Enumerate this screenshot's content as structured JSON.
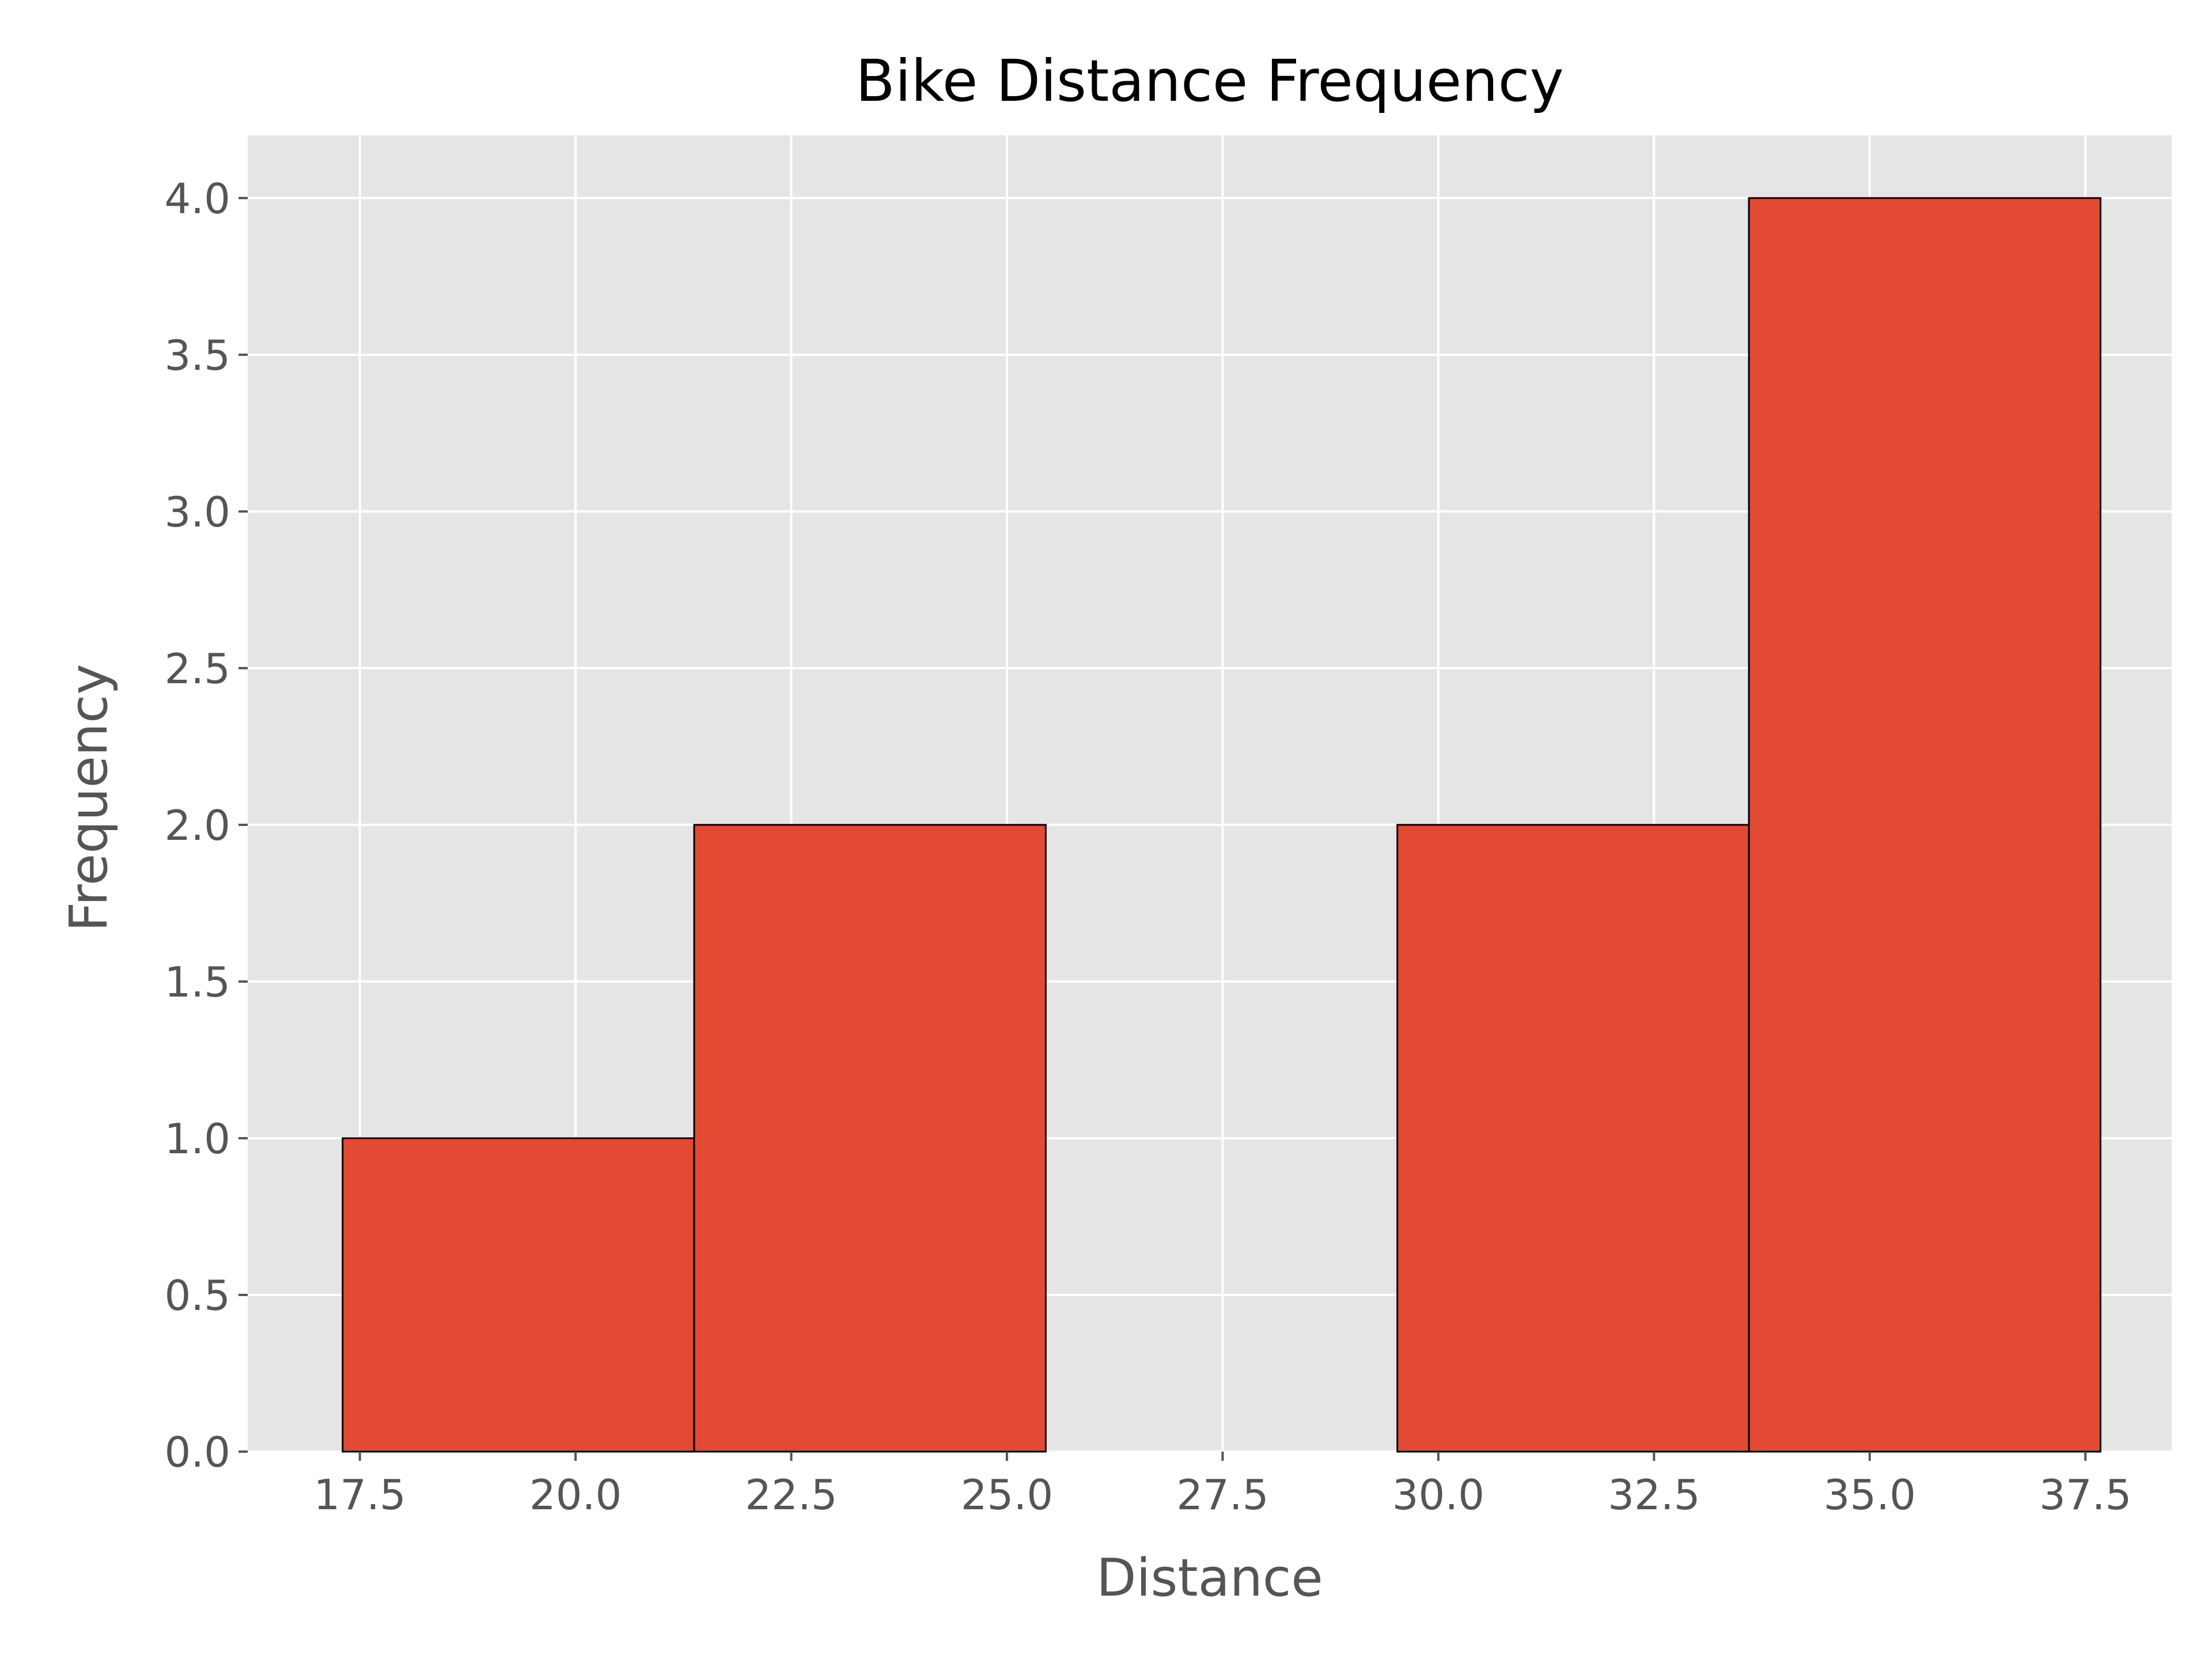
{
  "chart_data": {
    "type": "bar",
    "title": "Bike Distance Frequency",
    "xlabel": "Distance",
    "ylabel": "Frequency",
    "xlim": [
      16.2,
      38.5
    ],
    "ylim": [
      0,
      4.2
    ],
    "xticks": [
      "17.5",
      "20.0",
      "22.5",
      "25.0",
      "27.5",
      "30.0",
      "32.5",
      "35.0",
      "37.5"
    ],
    "yticks": [
      "0.0",
      "0.5",
      "1.0",
      "1.5",
      "2.0",
      "2.5",
      "3.0",
      "3.5",
      "4.0"
    ],
    "bins": [
      {
        "start": 17.3,
        "end": 21.375,
        "count": 1
      },
      {
        "start": 21.375,
        "end": 25.45,
        "count": 2
      },
      {
        "start": 25.45,
        "end": 29.525,
        "count": 0
      },
      {
        "start": 29.525,
        "end": 33.6,
        "count": 2
      },
      {
        "start": 33.6,
        "end": 37.675,
        "count": 4
      }
    ],
    "grid": true,
    "colors": {
      "bar": "#E24A33",
      "edge": "#000000",
      "background": "#E5E5E5",
      "grid": "#FFFFFF",
      "text": "#555555"
    }
  }
}
